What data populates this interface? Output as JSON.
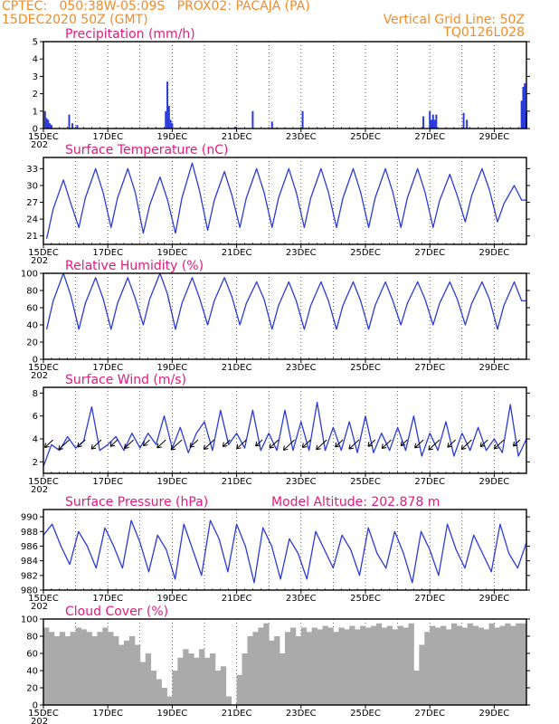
{
  "header": {
    "line1_left": "CPTEC:   050:38W-05:09S   PROX02: PACAJA (PA)",
    "line2_left": "15DEC2020 50Z (GMT)",
    "line2_right": "Vertical Grid Line: 50Z",
    "line3_right": "TQ0126L028"
  },
  "colors": {
    "line": "#2b3bd9",
    "title": "#e6197e",
    "header": "#f28c28",
    "cloud": "#aaaaaa",
    "arrow": "#000000"
  },
  "x_ticks": [
    "15DEC",
    "17DEC",
    "19DEC",
    "21DEC",
    "23DEC",
    "25DEC",
    "27DEC",
    "29DEC"
  ],
  "x_sub_label": "202",
  "chart_data": [
    {
      "type": "bar",
      "id": "precip",
      "title": "Precipitation (mm/h)",
      "x_day_range": [
        15,
        30
      ],
      "ylim": [
        0,
        5
      ],
      "yticks": [
        0,
        1,
        2,
        3,
        4,
        5
      ],
      "bars": [
        [
          15.05,
          1.0
        ],
        [
          15.1,
          0.6
        ],
        [
          15.15,
          0.5
        ],
        [
          15.2,
          0.3
        ],
        [
          15.25,
          0.2
        ],
        [
          15.8,
          0.8
        ],
        [
          15.9,
          0.3
        ],
        [
          16.05,
          0.2
        ],
        [
          18.8,
          1.0
        ],
        [
          18.85,
          2.7
        ],
        [
          18.9,
          1.3
        ],
        [
          18.95,
          0.5
        ],
        [
          19.0,
          0.3
        ],
        [
          20.95,
          0.1
        ],
        [
          21.5,
          1.0
        ],
        [
          22.1,
          0.4
        ],
        [
          23.05,
          1.0
        ],
        [
          26.8,
          0.7
        ],
        [
          27.0,
          1.0
        ],
        [
          27.05,
          0.5
        ],
        [
          27.1,
          0.8
        ],
        [
          27.15,
          0.5
        ],
        [
          27.2,
          0.8
        ],
        [
          28.05,
          0.9
        ],
        [
          28.15,
          0.5
        ],
        [
          29.85,
          1.6
        ],
        [
          29.9,
          2.4
        ],
        [
          29.95,
          2.6
        ],
        [
          30.0,
          1.0
        ]
      ]
    },
    {
      "type": "line",
      "id": "temp",
      "title": "Surface Temperature (nC)",
      "x_day_range": [
        15,
        30
      ],
      "ylim": [
        19.5,
        35
      ],
      "yticks": [
        21,
        24,
        27,
        30,
        33
      ],
      "daily_min": [
        20.5,
        22.5,
        22.5,
        21.5,
        21.5,
        22.0,
        22.5,
        22.5,
        22.5,
        22.5,
        22.5,
        22.5,
        22.5,
        23.5,
        23.5
      ],
      "daily_max": [
        31.0,
        33.0,
        33.0,
        31.5,
        34.0,
        32.5,
        33.0,
        33.0,
        33.0,
        33.0,
        33.0,
        33.0,
        32.0,
        33.0,
        30.0
      ]
    },
    {
      "type": "line",
      "id": "rh",
      "title": "Relative Humidity (%)",
      "x_day_range": [
        15,
        30
      ],
      "ylim": [
        0,
        100
      ],
      "yticks": [
        0,
        20,
        40,
        60,
        80,
        100
      ],
      "daily_min": [
        35,
        35,
        35,
        40,
        35,
        40,
        40,
        35,
        35,
        35,
        35,
        40,
        40,
        40,
        35
      ],
      "daily_max": [
        100,
        95,
        95,
        100,
        95,
        95,
        90,
        90,
        90,
        90,
        90,
        90,
        90,
        90,
        90
      ]
    },
    {
      "type": "line",
      "id": "wind",
      "title": "Surface Wind (m/s)",
      "x_day_range": [
        15,
        30
      ],
      "ylim": [
        1,
        8.5
      ],
      "yticks": [
        2,
        4,
        6,
        8
      ],
      "values": [
        1.6,
        3.5,
        3.0,
        4.2,
        3.2,
        3.8,
        6.8,
        3.0,
        3.5,
        4.2,
        3.0,
        4.5,
        3.2,
        4.5,
        3.5,
        6.0,
        3.2,
        5.0,
        2.8,
        4.5,
        5.5,
        3.0,
        6.5,
        3.5,
        4.5,
        3.2,
        6.5,
        3.0,
        4.5,
        3.0,
        6.5,
        3.0,
        5.5,
        3.0,
        7.2,
        3.0,
        5.0,
        3.0,
        5.5,
        2.8,
        6.0,
        2.8,
        4.5,
        3.0,
        5.0,
        3.0,
        6.0,
        2.5,
        4.5,
        3.0,
        5.5,
        2.5,
        4.5,
        3.0,
        5.0,
        3.0,
        4.0,
        2.8,
        7.0,
        2.5,
        4.0
      ],
      "barbs_day_start": 15.3,
      "barbs_day_step": 0.5
    },
    {
      "type": "line",
      "id": "pres",
      "title": "Surface Pressure (hPa)",
      "annotation": "Model Altitude: 202.878 m",
      "x_day_range": [
        15,
        30
      ],
      "ylim": [
        980,
        991
      ],
      "yticks": [
        980,
        982,
        984,
        986,
        988,
        990
      ],
      "values": [
        987.5,
        989.0,
        986.0,
        983.5,
        988.0,
        986.0,
        983.0,
        988.5,
        986.0,
        983.0,
        989.5,
        986.5,
        982.5,
        987.5,
        985.5,
        981.5,
        989.0,
        985.5,
        982.0,
        989.5,
        987.0,
        982.5,
        989.0,
        986.0,
        981.0,
        988.5,
        986.0,
        981.5,
        987.0,
        985.0,
        981.5,
        988.0,
        985.5,
        983.0,
        987.5,
        985.5,
        982.0,
        988.5,
        985.0,
        983.0,
        988.0,
        985.0,
        981.0,
        988.0,
        985.5,
        982.0,
        989.0,
        985.5,
        983.0,
        987.5,
        985.0,
        982.5,
        989.0,
        985.0,
        983.0,
        986.5
      ]
    },
    {
      "type": "area",
      "id": "cloud",
      "title": "Cloud Cover (%)",
      "x_day_range": [
        15,
        30
      ],
      "ylim": [
        0,
        100
      ],
      "yticks": [
        0,
        20,
        40,
        60,
        80,
        100
      ],
      "values": [
        90,
        85,
        80,
        85,
        80,
        85,
        90,
        88,
        85,
        80,
        85,
        90,
        85,
        80,
        70,
        75,
        80,
        70,
        50,
        60,
        40,
        30,
        20,
        10,
        40,
        55,
        65,
        60,
        55,
        65,
        55,
        60,
        40,
        45,
        10,
        0,
        35,
        60,
        80,
        85,
        90,
        95,
        75,
        80,
        60,
        85,
        90,
        80,
        90,
        85,
        90,
        88,
        92,
        90,
        85,
        90,
        88,
        92,
        88,
        92,
        90,
        92,
        95,
        90,
        92,
        88,
        92,
        90,
        95,
        40,
        70,
        85,
        92,
        90,
        92,
        88,
        95,
        92,
        90,
        95,
        92,
        90,
        88,
        95,
        90,
        92,
        95,
        92,
        95,
        95
      ]
    }
  ]
}
